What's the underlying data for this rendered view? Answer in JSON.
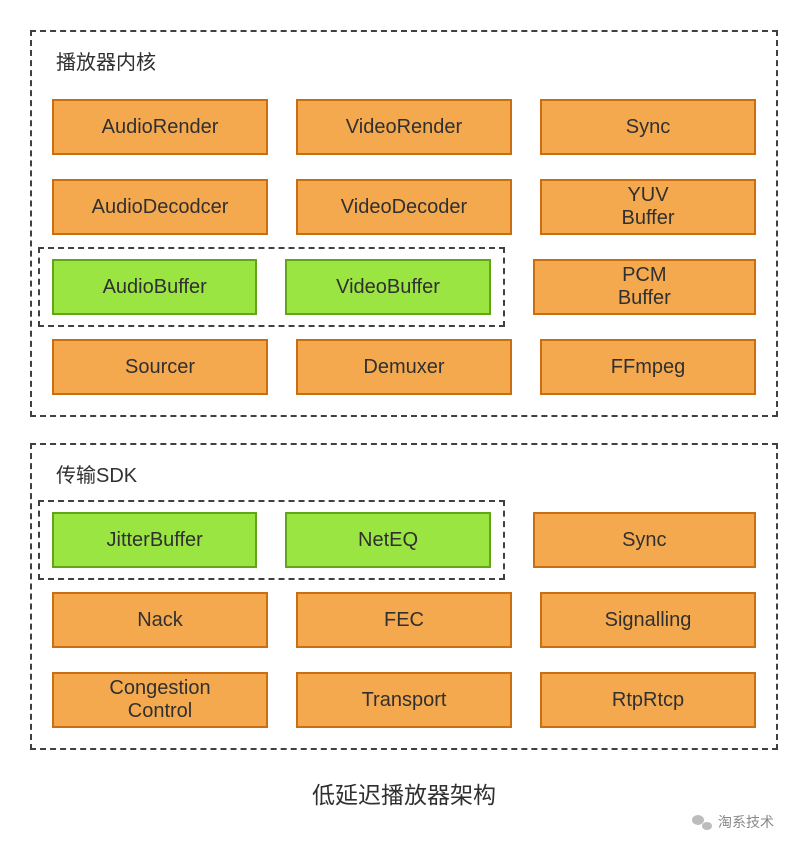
{
  "colors": {
    "orange_fill": "#f5a94f",
    "orange_border": "#c96f11",
    "green_fill": "#9ae542",
    "green_border": "#62a516",
    "dash_border": "#404040",
    "text": "#303030",
    "bg": "#ffffff"
  },
  "caption": "低延迟播放器架构",
  "footer": {
    "label": "淘系技术"
  },
  "sections": [
    {
      "title": "播放器内核",
      "rows": [
        {
          "type": "plain",
          "cells": [
            {
              "label": "AudioRender",
              "style": "orange"
            },
            {
              "label": "VideoRender",
              "style": "orange"
            },
            {
              "label": "Sync",
              "style": "orange"
            }
          ]
        },
        {
          "type": "plain",
          "cells": [
            {
              "label": "AudioDecodcer",
              "style": "orange"
            },
            {
              "label": "VideoDecoder",
              "style": "orange"
            },
            {
              "label": "YUV\nBuffer",
              "style": "orange"
            }
          ]
        },
        {
          "type": "grouped",
          "group": [
            {
              "label": "AudioBuffer",
              "style": "green"
            },
            {
              "label": "VideoBuffer",
              "style": "green"
            }
          ],
          "rest": [
            {
              "label": "PCM\nBuffer",
              "style": "orange"
            }
          ]
        },
        {
          "type": "plain",
          "cells": [
            {
              "label": "Sourcer",
              "style": "orange"
            },
            {
              "label": "Demuxer",
              "style": "orange"
            },
            {
              "label": "FFmpeg",
              "style": "orange"
            }
          ]
        }
      ]
    },
    {
      "title": "传输SDK",
      "rows": [
        {
          "type": "grouped",
          "group": [
            {
              "label": "JitterBuffer",
              "style": "green"
            },
            {
              "label": "NetEQ",
              "style": "green"
            }
          ],
          "rest": [
            {
              "label": "Sync",
              "style": "orange"
            }
          ]
        },
        {
          "type": "plain",
          "cells": [
            {
              "label": "Nack",
              "style": "orange"
            },
            {
              "label": "FEC",
              "style": "orange"
            },
            {
              "label": "Signalling",
              "style": "orange"
            }
          ]
        },
        {
          "type": "plain",
          "cells": [
            {
              "label": "Congestion\nControl",
              "style": "orange"
            },
            {
              "label": "Transport",
              "style": "orange"
            },
            {
              "label": "RtpRtcp",
              "style": "orange"
            }
          ]
        }
      ]
    }
  ]
}
